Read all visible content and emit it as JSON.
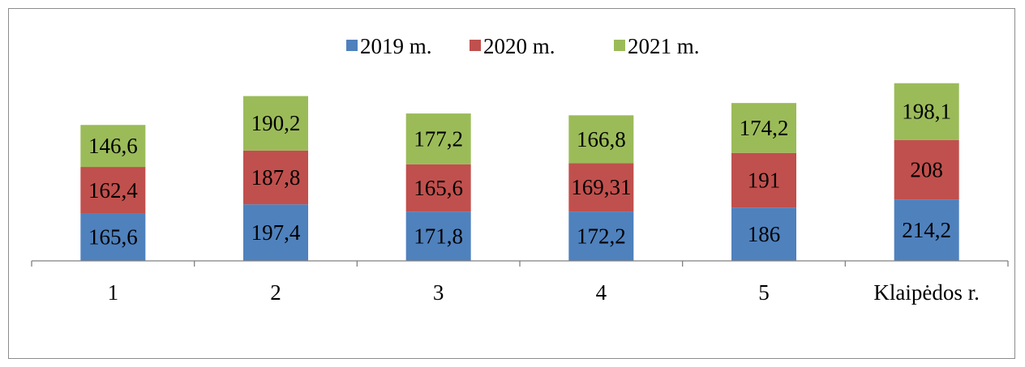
{
  "chart_data": {
    "type": "bar",
    "stacked": true,
    "categories": [
      "1",
      "2",
      "3",
      "4",
      "5",
      "Klaipėdos r."
    ],
    "series": [
      {
        "name": "2019 m.",
        "color": "#4f81bd",
        "values": [
          165.6,
          197.4,
          171.8,
          172.2,
          186,
          214.2
        ],
        "labels": [
          "165,6",
          "197,4",
          "171,8",
          "172,2",
          "186",
          "214,2"
        ]
      },
      {
        "name": "2020 m.",
        "color": "#c0504d",
        "values": [
          162.4,
          187.8,
          165.6,
          169.31,
          191,
          208
        ],
        "labels": [
          "162,4",
          "187,8",
          "165,6",
          "169,31",
          "191",
          "208"
        ]
      },
      {
        "name": "2021 m.",
        "color": "#9bbb59",
        "values": [
          146.6,
          190.2,
          177.2,
          166.8,
          174.2,
          198.1
        ],
        "labels": [
          "146,6",
          "190,2",
          "177,2",
          "166,8",
          "174,2",
          "198,1"
        ]
      }
    ],
    "ylim": [
      0,
      620
    ],
    "grid": false,
    "legend_position": "top-center",
    "axis_color": "#808080"
  }
}
